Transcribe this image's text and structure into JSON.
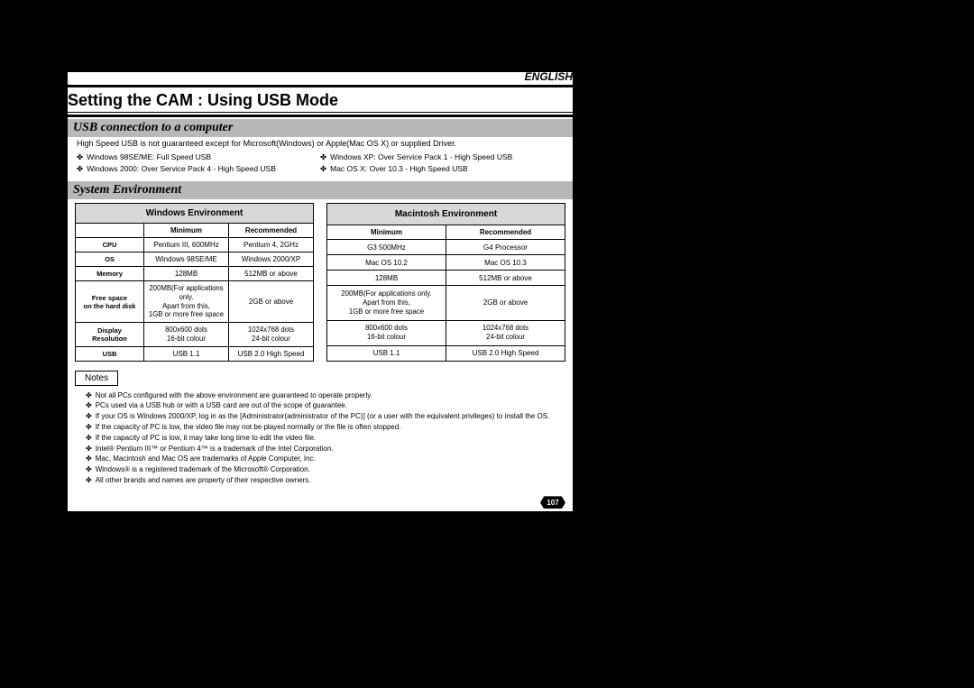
{
  "language_label": "ENGLISH",
  "page_title": "Setting the CAM : Using USB Mode",
  "section_usb": {
    "heading": "USB connection to a computer",
    "intro": "High Speed USB is not guaranteed except for Microsoft(Windows) or Apple(Mac OS X) or supplied Driver.",
    "bullets_left": [
      "Windows 98SE/ME: Full Speed USB",
      "Windows 2000: Over Service Pack 4 - High Speed USB"
    ],
    "bullets_right": [
      "Windows XP: Over Service Pack 1 - High Speed USB",
      "Mac OS X: Over 10.3 - High Speed USB"
    ]
  },
  "section_env": {
    "heading": "System Environment",
    "windows": {
      "title": "Windows Environment",
      "col_min": "Minimum",
      "col_rec": "Recommended",
      "rows": [
        {
          "label": "CPU",
          "min": "Pentium III, 600MHz",
          "rec": "Pentium 4, 2GHz"
        },
        {
          "label": "OS",
          "min": "Windows 98SE/ME",
          "rec": "Windows 2000/XP"
        },
        {
          "label": "Memory",
          "min": "128MB",
          "rec": "512MB or above"
        },
        {
          "label": "Free space\non the hard disk",
          "min": "200MB(For applications only.\nApart from this,\n1GB or more free space",
          "rec": "2GB or above"
        },
        {
          "label": "Display Resolution",
          "min": "800x600 dots\n16-bit colour",
          "rec": "1024x768 dots\n24-bit colour"
        },
        {
          "label": "USB",
          "min": "USB 1.1",
          "rec": "USB 2.0 High Speed"
        }
      ]
    },
    "mac": {
      "title": "Macintosh Environment",
      "col_min": "Minimum",
      "col_rec": "Recommended",
      "rows": [
        {
          "label": "",
          "min": "G3 500MHz",
          "rec": "G4 Processor"
        },
        {
          "label": "",
          "min": "Mac OS 10.2",
          "rec": "Mac OS 10.3"
        },
        {
          "label": "",
          "min": "128MB",
          "rec": "512MB or above"
        },
        {
          "label": "",
          "min": "200MB(For applications only.\nApart from this,\n1GB or more free space",
          "rec": "2GB or above"
        },
        {
          "label": "",
          "min": "800x600 dots\n16-bit colour",
          "rec": "1024x768 dots\n24-bit colour"
        },
        {
          "label": "",
          "min": "USB 1.1",
          "rec": "USB 2.0 High Speed"
        }
      ]
    }
  },
  "notes_label": "Notes",
  "notes": [
    "Not all PCs configured with the above environment are guaranteed to operate properly.",
    "PCs used via a USB hub or with a USB card are out of the scope of guarantee.",
    "If your OS is Windows 2000/XP, log in as the [Administrator(administrator of the PC)] (or a user with the equivalent privileges) to install the OS.",
    "If the capacity of PC is low, the video file may not be played normally or the file is often stopped.",
    "If the capacity of PC is low, it may take long time to edit the video file.",
    "Intel® Pentium III™ or Pentium 4™ is a trademark of the Intel Corporation.",
    "Mac, Macintosh and Mac OS are trademarks of Apple Computer, Inc.",
    "Windows® is a registered trademark of the Microsoft® Corporation.",
    "All other brands and names are property of their respective owners."
  ],
  "page_number": "107",
  "colors": {
    "page_bg": "#000000",
    "content_bg": "#ffffff",
    "section_bar_bg": "#b8b8b8",
    "table_header_bg": "#d8d8d8",
    "border": "#000000"
  }
}
